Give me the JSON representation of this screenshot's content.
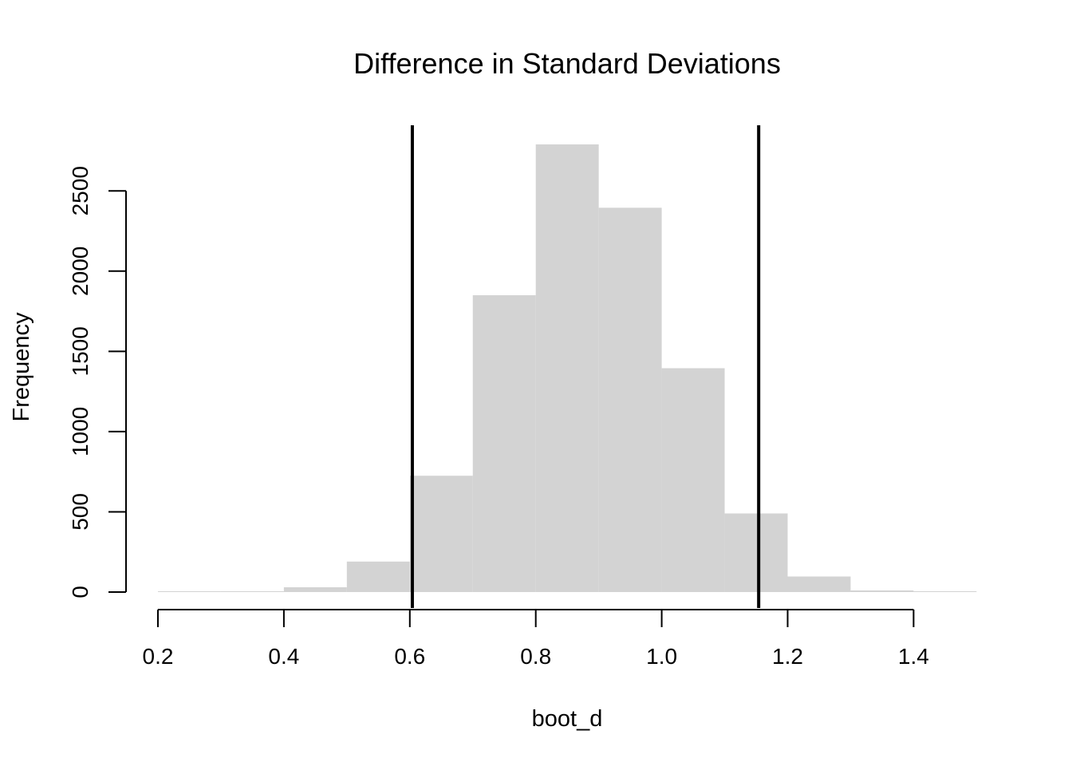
{
  "chart_data": {
    "type": "bar",
    "title": "Difference in Standard Deviations",
    "xlabel": "boot_d",
    "ylabel": "Frequency",
    "xlim": [
      0.2,
      1.5
    ],
    "ylim": [
      0,
      2900
    ],
    "x_ticks": [
      0.2,
      0.4,
      0.6,
      0.8,
      1.0,
      1.2,
      1.4
    ],
    "x_tick_labels": [
      "0.2",
      "0.4",
      "0.6",
      "0.8",
      "1.0",
      "1.2",
      "1.4"
    ],
    "y_ticks": [
      0,
      500,
      1000,
      1500,
      2000,
      2500
    ],
    "y_tick_labels": [
      "0",
      "500",
      "1000",
      "1500",
      "2000",
      "2500"
    ],
    "bins": [
      {
        "start": 0.2,
        "end": 0.3,
        "count": 1
      },
      {
        "start": 0.3,
        "end": 0.4,
        "count": 3
      },
      {
        "start": 0.4,
        "end": 0.5,
        "count": 30
      },
      {
        "start": 0.5,
        "end": 0.6,
        "count": 190
      },
      {
        "start": 0.6,
        "end": 0.7,
        "count": 725
      },
      {
        "start": 0.7,
        "end": 0.8,
        "count": 1850
      },
      {
        "start": 0.8,
        "end": 0.9,
        "count": 2790
      },
      {
        "start": 0.9,
        "end": 1.0,
        "count": 2395
      },
      {
        "start": 1.0,
        "end": 1.1,
        "count": 1395
      },
      {
        "start": 1.1,
        "end": 1.2,
        "count": 490
      },
      {
        "start": 1.2,
        "end": 1.3,
        "count": 97
      },
      {
        "start": 1.3,
        "end": 1.4,
        "count": 10
      },
      {
        "start": 1.4,
        "end": 1.5,
        "count": 1
      }
    ],
    "vlines": [
      0.604,
      1.154
    ],
    "bar_color": "#d3d3d3",
    "vline_color": "#000000",
    "grid": false,
    "legend": "none"
  }
}
